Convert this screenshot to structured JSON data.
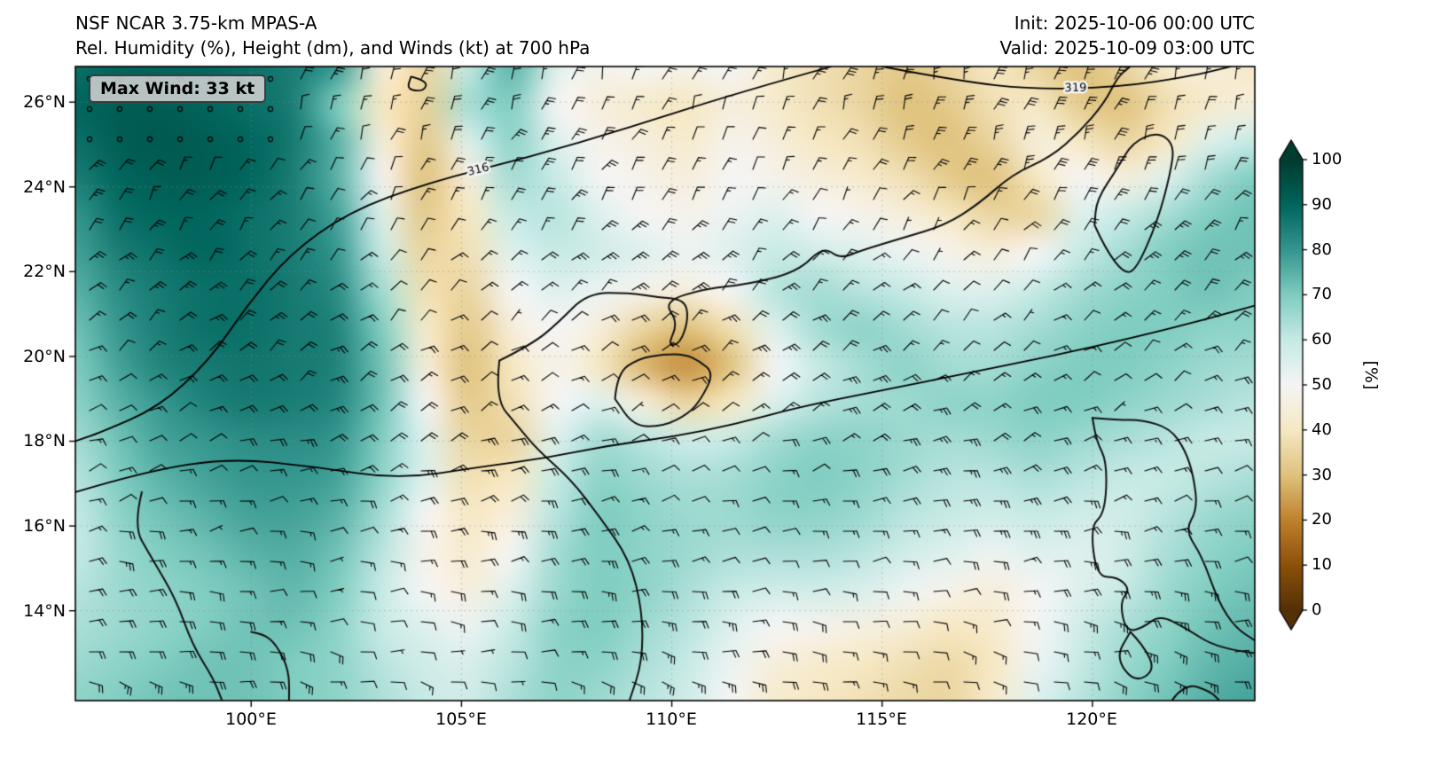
{
  "chart_data": {
    "type": "heatmap",
    "title": "NSF NCAR 3.75-km MPAS-A",
    "subtitle": "Rel. Humidity (%), Height (dm), and Winds (kt) at 700 hPa",
    "init_label": "Init: 2025-10-06 00:00 UTC",
    "valid_label": "Valid: 2025-10-09 03:00 UTC",
    "max_wind_label": "Max Wind: 33 kt",
    "max_wind_kt": 33,
    "x_ticks": [
      "100°E",
      "105°E",
      "110°E",
      "115°E",
      "120°E"
    ],
    "x_tick_lons": [
      100,
      105,
      110,
      115,
      120
    ],
    "y_ticks": [
      "26°N",
      "24°N",
      "22°N",
      "20°N",
      "18°N",
      "16°N",
      "14°N"
    ],
    "y_tick_lats": [
      26,
      24,
      22,
      20,
      18,
      16,
      14
    ],
    "lon_range": [
      95.82,
      123.86
    ],
    "lat_range": [
      11.88,
      26.84
    ],
    "grid_on": true,
    "colorbar": {
      "label": "[%]",
      "ticks": [
        100,
        90,
        80,
        70,
        60,
        50,
        40,
        30,
        20,
        10,
        0
      ],
      "range": [
        0,
        100
      ],
      "extend": "both",
      "colormap": "BrBG",
      "stops": [
        [
          0,
          "#543005"
        ],
        [
          10,
          "#8c510a"
        ],
        [
          20,
          "#bf812d"
        ],
        [
          30,
          "#dfc27d"
        ],
        [
          40,
          "#f6e8c3"
        ],
        [
          50,
          "#f5f5f5"
        ],
        [
          60,
          "#c7eae5"
        ],
        [
          70,
          "#80cdc1"
        ],
        [
          80,
          "#35978f"
        ],
        [
          90,
          "#01665e"
        ],
        [
          100,
          "#003c30"
        ]
      ]
    },
    "rh_grid": [
      [
        88,
        90,
        90,
        90,
        88,
        85,
        80,
        45,
        35,
        60,
        75,
        55,
        48,
        50,
        48,
        50,
        42,
        38,
        35,
        32,
        35,
        40,
        35,
        30,
        35,
        42,
        45,
        40
      ],
      [
        90,
        92,
        92,
        90,
        88,
        85,
        70,
        40,
        34,
        65,
        70,
        50,
        45,
        42,
        40,
        45,
        42,
        38,
        35,
        30,
        32,
        38,
        40,
        32,
        30,
        38,
        42,
        45
      ],
      [
        88,
        92,
        93,
        92,
        90,
        86,
        75,
        45,
        32,
        55,
        68,
        55,
        48,
        45,
        42,
        48,
        45,
        40,
        38,
        32,
        30,
        35,
        45,
        40,
        35,
        40,
        55,
        60
      ],
      [
        85,
        90,
        92,
        92,
        90,
        85,
        75,
        50,
        30,
        45,
        65,
        60,
        50,
        48,
        45,
        50,
        48,
        45,
        42,
        38,
        32,
        30,
        40,
        50,
        45,
        55,
        65,
        70
      ],
      [
        80,
        88,
        90,
        90,
        88,
        85,
        78,
        55,
        32,
        40,
        60,
        62,
        55,
        50,
        48,
        52,
        55,
        50,
        48,
        45,
        40,
        35,
        35,
        55,
        60,
        65,
        70,
        72
      ],
      [
        78,
        85,
        88,
        90,
        88,
        85,
        80,
        60,
        35,
        38,
        55,
        60,
        58,
        55,
        52,
        55,
        60,
        58,
        55,
        52,
        48,
        45,
        50,
        60,
        65,
        70,
        72,
        72
      ],
      [
        75,
        82,
        86,
        88,
        88,
        86,
        82,
        65,
        38,
        35,
        50,
        55,
        52,
        48,
        45,
        50,
        62,
        65,
        62,
        60,
        55,
        55,
        60,
        65,
        68,
        70,
        72,
        70
      ],
      [
        72,
        80,
        85,
        88,
        88,
        86,
        84,
        70,
        42,
        32,
        45,
        50,
        45,
        35,
        30,
        38,
        55,
        65,
        68,
        65,
        62,
        62,
        65,
        68,
        70,
        70,
        68,
        68
      ],
      [
        70,
        78,
        84,
        86,
        87,
        86,
        84,
        72,
        45,
        30,
        40,
        48,
        40,
        28,
        22,
        30,
        50,
        60,
        65,
        68,
        65,
        65,
        68,
        70,
        70,
        68,
        66,
        65
      ],
      [
        68,
        75,
        80,
        84,
        86,
        85,
        83,
        72,
        50,
        32,
        38,
        50,
        55,
        45,
        35,
        40,
        55,
        62,
        65,
        66,
        68,
        68,
        70,
        70,
        68,
        66,
        64,
        62
      ],
      [
        65,
        72,
        78,
        80,
        82,
        82,
        80,
        70,
        55,
        35,
        35,
        55,
        65,
        62,
        58,
        60,
        65,
        68,
        68,
        66,
        65,
        66,
        68,
        66,
        64,
        62,
        60,
        60
      ],
      [
        62,
        70,
        75,
        78,
        80,
        80,
        78,
        68,
        55,
        38,
        40,
        60,
        68,
        66,
        64,
        65,
        68,
        70,
        68,
        65,
        62,
        62,
        64,
        62,
        60,
        60,
        62,
        64
      ],
      [
        60,
        68,
        72,
        75,
        78,
        78,
        75,
        65,
        50,
        40,
        45,
        62,
        70,
        68,
        66,
        66,
        68,
        68,
        66,
        62,
        60,
        58,
        60,
        58,
        58,
        62,
        66,
        68
      ],
      [
        60,
        66,
        70,
        72,
        75,
        76,
        72,
        62,
        48,
        42,
        50,
        65,
        70,
        68,
        66,
        64,
        64,
        64,
        62,
        58,
        55,
        52,
        55,
        55,
        58,
        64,
        68,
        70
      ],
      [
        62,
        66,
        68,
        70,
        72,
        74,
        70,
        60,
        50,
        45,
        55,
        66,
        70,
        68,
        64,
        60,
        58,
        58,
        56,
        52,
        48,
        45,
        50,
        55,
        60,
        66,
        70,
        72
      ],
      [
        64,
        66,
        68,
        70,
        72,
        72,
        68,
        60,
        55,
        52,
        60,
        68,
        70,
        66,
        62,
        55,
        50,
        48,
        46,
        44,
        40,
        42,
        50,
        58,
        64,
        68,
        72,
        74
      ],
      [
        66,
        68,
        70,
        72,
        72,
        70,
        68,
        62,
        58,
        56,
        62,
        68,
        68,
        64,
        60,
        52,
        45,
        42,
        40,
        38,
        36,
        40,
        52,
        60,
        66,
        70,
        74,
        76
      ],
      [
        68,
        70,
        72,
        72,
        72,
        70,
        68,
        64,
        60,
        58,
        64,
        68,
        66,
        62,
        58,
        50,
        42,
        40,
        38,
        36,
        35,
        42,
        55,
        62,
        68,
        72,
        76,
        78
      ]
    ],
    "contours": [
      {
        "label": "316",
        "label_at": 3,
        "points": [
          [
            113.8,
            26.84
          ],
          [
            111.5,
            26.2
          ],
          [
            109.0,
            25.4
          ],
          [
            106.6,
            24.7
          ],
          [
            104.2,
            24.1
          ],
          [
            102.3,
            23.4
          ],
          [
            100.9,
            22.4
          ],
          [
            99.9,
            21.2
          ],
          [
            99.0,
            19.9
          ],
          [
            97.8,
            18.8
          ],
          [
            96.4,
            18.2
          ],
          [
            95.82,
            18.0
          ]
        ]
      },
      {
        "label": "319",
        "label_at": 2,
        "points": [
          [
            115.0,
            26.84
          ],
          [
            116.8,
            26.5
          ],
          [
            118.6,
            26.3
          ],
          [
            120.6,
            26.35
          ],
          [
            122.3,
            26.6
          ],
          [
            123.3,
            26.84
          ]
        ]
      },
      {
        "label": "",
        "label_at": -1,
        "points": [
          [
            95.82,
            16.8
          ],
          [
            97.5,
            17.3
          ],
          [
            99.5,
            17.6
          ],
          [
            101.5,
            17.4
          ],
          [
            103.5,
            17.1
          ],
          [
            105.5,
            17.4
          ],
          [
            107.0,
            17.6
          ],
          [
            108.5,
            17.9
          ],
          [
            110.0,
            18.1
          ],
          [
            111.5,
            18.4
          ],
          [
            113.0,
            18.8
          ],
          [
            115.0,
            19.2
          ],
          [
            117.0,
            19.6
          ],
          [
            119.0,
            20.0
          ],
          [
            121.0,
            20.45
          ],
          [
            122.8,
            20.9
          ],
          [
            123.86,
            21.2
          ]
        ]
      },
      {
        "label": "",
        "label_at": -1,
        "points": [
          [
            103.8,
            26.6
          ],
          [
            104.2,
            26.5
          ],
          [
            104.1,
            26.25
          ],
          [
            103.7,
            26.3
          ],
          [
            103.8,
            26.6
          ]
        ]
      }
    ],
    "coastlines": [
      [
        [
          105.9,
          19.9
        ],
        [
          105.8,
          19.0
        ],
        [
          106.3,
          18.4
        ],
        [
          106.8,
          17.8
        ],
        [
          107.6,
          17.1
        ],
        [
          108.3,
          16.2
        ],
        [
          109.0,
          15.2
        ],
        [
          109.3,
          14.0
        ],
        [
          109.3,
          12.8
        ],
        [
          109.0,
          11.9
        ]
      ],
      [
        [
          105.9,
          19.9
        ],
        [
          106.7,
          20.3
        ],
        [
          107.3,
          20.8
        ],
        [
          108.0,
          21.5
        ],
        [
          109.0,
          21.5
        ],
        [
          109.6,
          21.4
        ],
        [
          110.3,
          21.35
        ],
        [
          110.4,
          20.9
        ],
        [
          110.2,
          20.3
        ],
        [
          109.9,
          20.25
        ],
        [
          110.15,
          20.8
        ],
        [
          109.8,
          21.3
        ],
        [
          110.8,
          21.6
        ],
        [
          111.8,
          21.7
        ],
        [
          113.0,
          22.0
        ],
        [
          113.6,
          22.6
        ],
        [
          114.0,
          22.3
        ],
        [
          114.5,
          22.5
        ],
        [
          115.5,
          22.8
        ],
        [
          116.5,
          23.1
        ],
        [
          117.3,
          23.6
        ],
        [
          118.1,
          24.3
        ],
        [
          119.0,
          24.7
        ],
        [
          119.7,
          25.3
        ],
        [
          120.3,
          26.0
        ],
        [
          120.6,
          26.6
        ],
        [
          120.9,
          26.84
        ]
      ],
      [
        [
          108.65,
          19.0
        ],
        [
          108.7,
          19.6
        ],
        [
          109.2,
          19.95
        ],
        [
          109.8,
          20.05
        ],
        [
          110.3,
          20.05
        ],
        [
          110.65,
          19.9
        ],
        [
          111.0,
          19.6
        ],
        [
          110.7,
          19.0
        ],
        [
          110.4,
          18.65
        ],
        [
          109.8,
          18.35
        ],
        [
          109.1,
          18.35
        ],
        [
          108.65,
          19.0
        ]
      ],
      [
        [
          120.05,
          23.1
        ],
        [
          120.3,
          22.55
        ],
        [
          120.75,
          21.95
        ],
        [
          121.05,
          22.05
        ],
        [
          121.55,
          23.2
        ],
        [
          121.85,
          24.3
        ],
        [
          121.95,
          25.0
        ],
        [
          121.55,
          25.3
        ],
        [
          120.95,
          25.05
        ],
        [
          120.6,
          24.45
        ],
        [
          120.1,
          23.7
        ],
        [
          120.05,
          23.1
        ]
      ],
      [
        [
          120.0,
          18.55
        ],
        [
          120.6,
          18.5
        ],
        [
          121.2,
          18.5
        ],
        [
          121.85,
          18.3
        ],
        [
          122.2,
          17.8
        ],
        [
          122.4,
          17.2
        ],
        [
          122.5,
          16.4
        ],
        [
          122.2,
          15.9
        ],
        [
          122.6,
          15.3
        ],
        [
          123.0,
          14.2
        ],
        [
          123.4,
          13.6
        ],
        [
          123.86,
          13.3
        ]
      ],
      [
        [
          123.86,
          13.0
        ],
        [
          123.0,
          13.1
        ],
        [
          122.2,
          13.6
        ],
        [
          121.6,
          13.9
        ],
        [
          121.2,
          13.6
        ],
        [
          120.8,
          13.5
        ],
        [
          120.65,
          14.2
        ],
        [
          120.9,
          14.5
        ],
        [
          120.6,
          14.8
        ],
        [
          120.1,
          14.8
        ],
        [
          119.95,
          16.0
        ],
        [
          120.3,
          16.3
        ],
        [
          120.35,
          17.5
        ],
        [
          120.1,
          18.0
        ],
        [
          120.0,
          18.55
        ]
      ],
      [
        [
          120.9,
          13.5
        ],
        [
          121.2,
          13.2
        ],
        [
          121.5,
          12.6
        ],
        [
          121.0,
          12.3
        ],
        [
          120.55,
          12.9
        ],
        [
          120.9,
          13.5
        ]
      ],
      [
        [
          121.9,
          11.9
        ],
        [
          122.2,
          12.3
        ],
        [
          122.8,
          12.1
        ],
        [
          123.0,
          11.9
        ]
      ],
      [
        [
          97.4,
          16.8
        ],
        [
          97.2,
          16.0
        ],
        [
          97.6,
          15.3
        ],
        [
          98.2,
          14.3
        ],
        [
          98.6,
          13.2
        ],
        [
          99.1,
          12.4
        ],
        [
          99.3,
          11.9
        ]
      ],
      [
        [
          100.0,
          13.5
        ],
        [
          100.3,
          13.45
        ],
        [
          100.6,
          13.2
        ],
        [
          100.9,
          12.6
        ],
        [
          100.9,
          11.9
        ]
      ]
    ],
    "wind_barbs": {
      "spacing_px": 34,
      "units": "kt",
      "max_kt": 33
    }
  }
}
